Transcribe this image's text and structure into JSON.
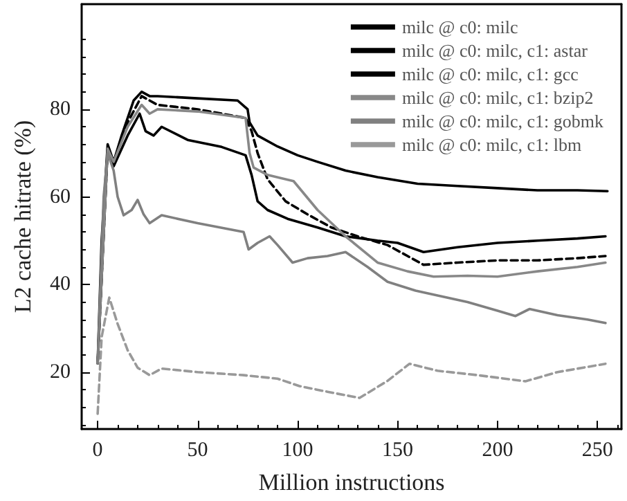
{
  "chart_data": {
    "type": "line",
    "xlabel": "Million instructions",
    "ylabel": "L2 cache hitrate (%)",
    "xlim": [
      -8,
      262
    ],
    "xticks": [
      0,
      50,
      100,
      150,
      200,
      250
    ],
    "ylim": [
      7,
      104
    ],
    "yticks": [
      20,
      40,
      60,
      80
    ],
    "grid": false,
    "legend": "top right",
    "marker": "none",
    "series": [
      {
        "name": "milc @ c0: milc",
        "color": "#000000",
        "line_style": "solid",
        "x": [
          0,
          2,
          5,
          8,
          12,
          18,
          22,
          26,
          30,
          50,
          70,
          75,
          76,
          80,
          90,
          100,
          110,
          124,
          140,
          160,
          180,
          200,
          220,
          240,
          255
        ],
        "values": [
          22,
          50,
          72,
          68,
          74,
          82,
          84,
          83,
          83,
          82.5,
          82,
          80,
          77,
          74,
          71.5,
          69.5,
          68,
          66,
          64.5,
          63,
          62.5,
          62,
          61.5,
          61.5,
          61.3
        ]
      },
      {
        "name": "milc @ c0: milc, c1: astar",
        "color": "#000000",
        "line_style": "dashed",
        "x": [
          0,
          5,
          8,
          15,
          22,
          30,
          50,
          74,
          77,
          80,
          85,
          94,
          105,
          117,
          130,
          145,
          163,
          180,
          200,
          220,
          240,
          254
        ],
        "values": [
          22,
          71,
          68,
          77,
          83,
          81,
          80,
          78,
          75,
          70,
          64,
          59,
          56,
          53,
          51,
          49,
          44.5,
          45,
          45.5,
          45.5,
          46,
          46.5
        ]
      },
      {
        "name": "milc @ c0: milc, c1: gcc",
        "color": "#000000",
        "line_style": "solid",
        "x": [
          0,
          5,
          8,
          15,
          21,
          24,
          28,
          32,
          45,
          62,
          74,
          77,
          80,
          85,
          95,
          110,
          124,
          140,
          150,
          163,
          180,
          200,
          220,
          240,
          254
        ],
        "values": [
          22,
          71,
          67,
          74,
          79,
          75,
          74,
          76,
          73,
          71.4,
          69.5,
          65,
          59,
          57,
          55,
          53,
          51,
          50,
          49.5,
          47.4,
          48.5,
          49.5,
          50,
          50.5,
          51
        ]
      },
      {
        "name": "milc @ c0: milc, c1: bzip2",
        "color": "#888888",
        "line_style": "solid",
        "x": [
          0,
          5,
          8,
          15,
          22,
          26,
          30,
          50,
          74,
          76,
          78,
          85,
          98,
          110,
          124,
          140,
          155,
          168,
          185,
          200,
          220,
          240,
          254
        ],
        "values": [
          22,
          71,
          68,
          76,
          81,
          79,
          80,
          79.5,
          78,
          70,
          66.7,
          65,
          63.6,
          57,
          51,
          45,
          43,
          41.8,
          42,
          41.8,
          43,
          44,
          45
        ]
      },
      {
        "name": "milc @ c0: milc, c1: gobmk",
        "color": "#808080",
        "line_style": "solid",
        "x": [
          0,
          3,
          5,
          8,
          10,
          13,
          17,
          20,
          23,
          26,
          32,
          50,
          73,
          75.5,
          80,
          86,
          90,
          97.5,
          105,
          115,
          124,
          135,
          145,
          159,
          170,
          185,
          200,
          209,
          216,
          230,
          245,
          254
        ],
        "values": [
          22,
          60,
          70,
          66,
          60,
          55.8,
          57,
          59.3,
          56,
          54,
          55.8,
          54,
          52,
          48,
          49.5,
          51,
          49,
          45,
          46,
          46.5,
          47.4,
          44,
          40.6,
          38.6,
          37.5,
          36,
          34,
          32.8,
          34.4,
          33,
          32,
          31.2
        ]
      },
      {
        "name": "milc @ c0: milc, c1: lbm",
        "color": "#999999",
        "line_style": "dashed",
        "x": [
          0,
          2,
          5.8,
          10,
          15,
          20,
          26,
          32,
          50,
          73,
          90,
          101,
          115,
          131,
          145,
          156,
          170,
          190,
          214,
          230,
          254
        ],
        "values": [
          10.5,
          28,
          37,
          31,
          25,
          21,
          19.3,
          20.8,
          20,
          19.3,
          18.5,
          16.8,
          15.5,
          14.1,
          18,
          21.9,
          20.3,
          19.3,
          17.9,
          20,
          21.9
        ]
      }
    ]
  }
}
